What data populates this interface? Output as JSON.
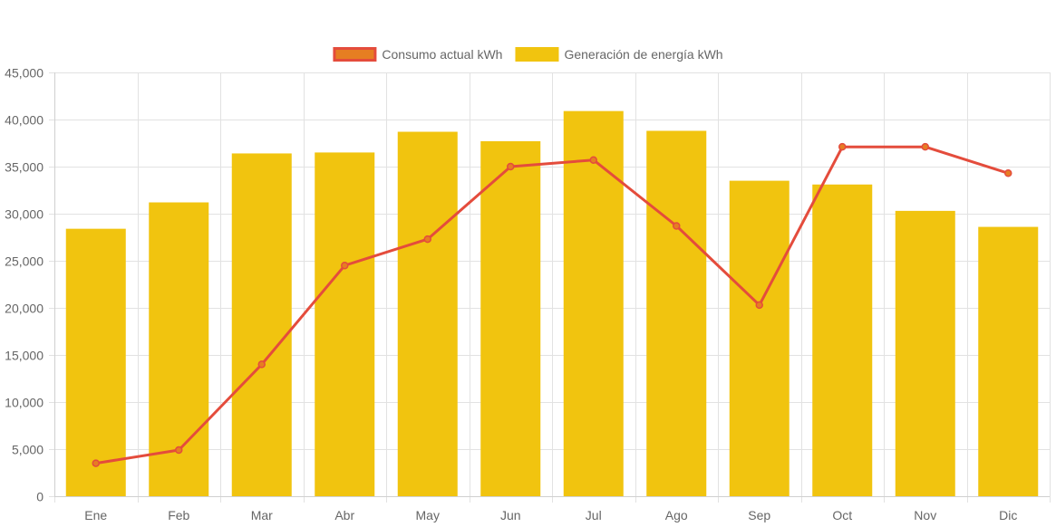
{
  "chart_data": {
    "type": "bar",
    "categories": [
      "Ene",
      "Feb",
      "Mar",
      "Abr",
      "May",
      "Jun",
      "Jul",
      "Ago",
      "Sep",
      "Oct",
      "Nov",
      "Dic"
    ],
    "series": [
      {
        "name": "Consumo actual kWh",
        "type": "line",
        "color": "#e44c3c",
        "fill": "#e67e22",
        "values": [
          3500,
          4900,
          14000,
          24500,
          27300,
          35000,
          35700,
          28700,
          20300,
          37100,
          37100,
          34300
        ]
      },
      {
        "name": "Generación de energía kWh",
        "type": "bar",
        "color": "#f1c40f",
        "values": [
          28400,
          31200,
          36400,
          36500,
          38700,
          37700,
          40900,
          38800,
          33500,
          33100,
          30300,
          28600
        ]
      }
    ],
    "ylim": [
      0,
      45000
    ],
    "yticks": [
      0,
      5000,
      10000,
      15000,
      20000,
      25000,
      30000,
      35000,
      40000,
      45000
    ],
    "ytick_labels": [
      "0",
      "5,000",
      "10,000",
      "15,000",
      "20,000",
      "25,000",
      "30,000",
      "35,000",
      "40,000",
      "45,000"
    ],
    "grid": true,
    "legend_position": "top"
  }
}
